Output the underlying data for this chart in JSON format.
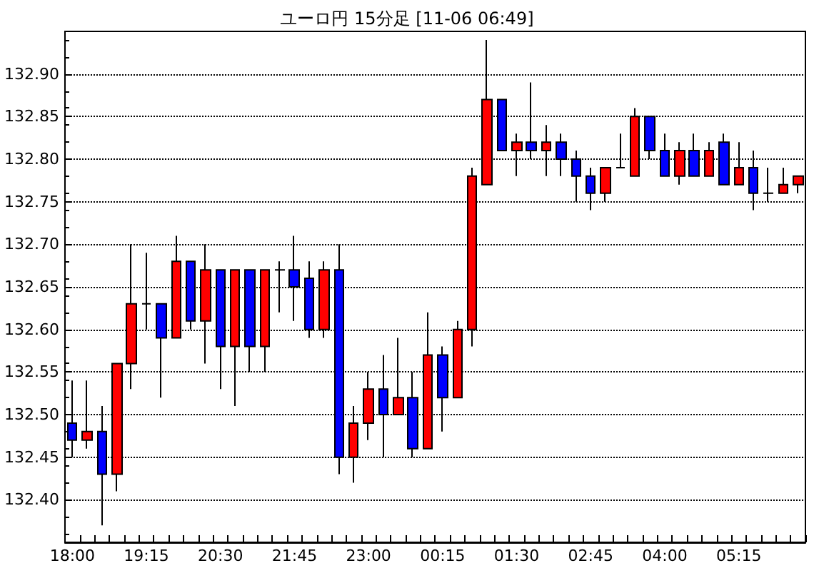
{
  "chart_data": {
    "type": "candlestick",
    "title": "ユーロ円 15分足 [11-06 06:49]",
    "categories": [
      "18:00",
      null,
      null,
      null,
      null,
      "19:15",
      null,
      null,
      null,
      null,
      "20:30",
      null,
      null,
      null,
      null,
      "21:45",
      null,
      null,
      null,
      null,
      "23:00",
      null,
      null,
      null,
      null,
      "00:15",
      null,
      null,
      null,
      null,
      "01:30",
      null,
      null,
      null,
      null,
      "02:45",
      null,
      null,
      null,
      null,
      "04:00",
      null,
      null,
      null,
      null,
      "05:15",
      null,
      null,
      null,
      null
    ],
    "ohlc": [
      [
        132.49,
        132.54,
        132.45,
        132.47
      ],
      [
        132.47,
        132.54,
        132.46,
        132.48
      ],
      [
        132.48,
        132.51,
        132.37,
        132.43
      ],
      [
        132.43,
        132.56,
        132.41,
        132.56
      ],
      [
        132.56,
        132.7,
        132.53,
        132.63
      ],
      [
        132.63,
        132.69,
        132.6,
        132.63
      ],
      [
        132.63,
        132.63,
        132.52,
        132.59
      ],
      [
        132.59,
        132.71,
        132.59,
        132.68
      ],
      [
        132.68,
        132.68,
        132.6,
        132.61
      ],
      [
        132.61,
        132.7,
        132.56,
        132.67
      ],
      [
        132.67,
        132.67,
        132.53,
        132.58
      ],
      [
        132.58,
        132.67,
        132.51,
        132.67
      ],
      [
        132.67,
        132.67,
        132.55,
        132.58
      ],
      [
        132.58,
        132.67,
        132.55,
        132.67
      ],
      [
        132.67,
        132.68,
        132.62,
        132.67
      ],
      [
        132.67,
        132.71,
        132.61,
        132.65
      ],
      [
        132.66,
        132.68,
        132.59,
        132.6
      ],
      [
        132.6,
        132.68,
        132.59,
        132.67
      ],
      [
        132.67,
        132.7,
        132.43,
        132.45
      ],
      [
        132.45,
        132.51,
        132.42,
        132.49
      ],
      [
        132.49,
        132.55,
        132.47,
        132.53
      ],
      [
        132.53,
        132.57,
        132.45,
        132.5
      ],
      [
        132.5,
        132.59,
        132.5,
        132.52
      ],
      [
        132.52,
        132.55,
        132.45,
        132.46
      ],
      [
        132.46,
        132.62,
        132.46,
        132.57
      ],
      [
        132.57,
        132.58,
        132.48,
        132.52
      ],
      [
        132.52,
        132.61,
        132.52,
        132.6
      ],
      [
        132.6,
        132.79,
        132.58,
        132.78
      ],
      [
        132.77,
        132.94,
        132.77,
        132.87
      ],
      [
        132.87,
        132.87,
        132.81,
        132.81
      ],
      [
        132.81,
        132.83,
        132.78,
        132.82
      ],
      [
        132.82,
        132.89,
        132.8,
        132.81
      ],
      [
        132.81,
        132.84,
        132.78,
        132.82
      ],
      [
        132.82,
        132.83,
        132.78,
        132.8
      ],
      [
        132.8,
        132.81,
        132.75,
        132.78
      ],
      [
        132.78,
        132.79,
        132.74,
        132.76
      ],
      [
        132.76,
        132.79,
        132.75,
        132.79
      ],
      [
        132.79,
        132.83,
        132.79,
        132.79
      ],
      [
        132.78,
        132.86,
        132.78,
        132.85
      ],
      [
        132.85,
        132.85,
        132.8,
        132.81
      ],
      [
        132.81,
        132.83,
        132.78,
        132.78
      ],
      [
        132.78,
        132.82,
        132.77,
        132.81
      ],
      [
        132.81,
        132.83,
        132.78,
        132.78
      ],
      [
        132.78,
        132.82,
        132.78,
        132.81
      ],
      [
        132.82,
        132.83,
        132.77,
        132.77
      ],
      [
        132.77,
        132.82,
        132.77,
        132.79
      ],
      [
        132.79,
        132.81,
        132.74,
        132.76
      ],
      [
        132.76,
        132.79,
        132.75,
        132.76
      ],
      [
        132.76,
        132.79,
        132.76,
        132.77
      ],
      [
        132.77,
        132.78,
        132.76,
        132.78
      ]
    ],
    "colors": [
      "#0000ff",
      "#ff0000",
      "#0000ff",
      "#ff0000",
      "#ff0000",
      "#000000",
      "#0000ff",
      "#ff0000",
      "#0000ff",
      "#ff0000",
      "#0000ff",
      "#ff0000",
      "#0000ff",
      "#ff0000",
      "#000000",
      "#0000ff",
      "#0000ff",
      "#ff0000",
      "#0000ff",
      "#ff0000",
      "#ff0000",
      "#0000ff",
      "#ff0000",
      "#0000ff",
      "#ff0000",
      "#0000ff",
      "#ff0000",
      "#ff0000",
      "#ff0000",
      "#0000ff",
      "#ff0000",
      "#0000ff",
      "#ff0000",
      "#0000ff",
      "#0000ff",
      "#0000ff",
      "#ff0000",
      "#000000",
      "#ff0000",
      "#0000ff",
      "#0000ff",
      "#ff0000",
      "#0000ff",
      "#ff0000",
      "#0000ff",
      "#ff0000",
      "#0000ff",
      "#000000",
      "#ff0000",
      "#ff0000"
    ],
    "ylim": [
      132.35,
      132.95
    ],
    "yticks": [
      {
        "value": 132.4,
        "label": "132.40"
      },
      {
        "value": 132.45,
        "label": "132.45"
      },
      {
        "value": 132.5,
        "label": "132.50"
      },
      {
        "value": 132.55,
        "label": "132.55"
      },
      {
        "value": 132.6,
        "label": "132.60"
      },
      {
        "value": 132.65,
        "label": "132.65"
      },
      {
        "value": 132.7,
        "label": "132.70"
      },
      {
        "value": 132.75,
        "label": "132.75"
      },
      {
        "value": 132.8,
        "label": "132.80"
      },
      {
        "value": 132.85,
        "label": "132.85"
      },
      {
        "value": 132.9,
        "label": "132.90"
      }
    ],
    "grid": "y"
  }
}
